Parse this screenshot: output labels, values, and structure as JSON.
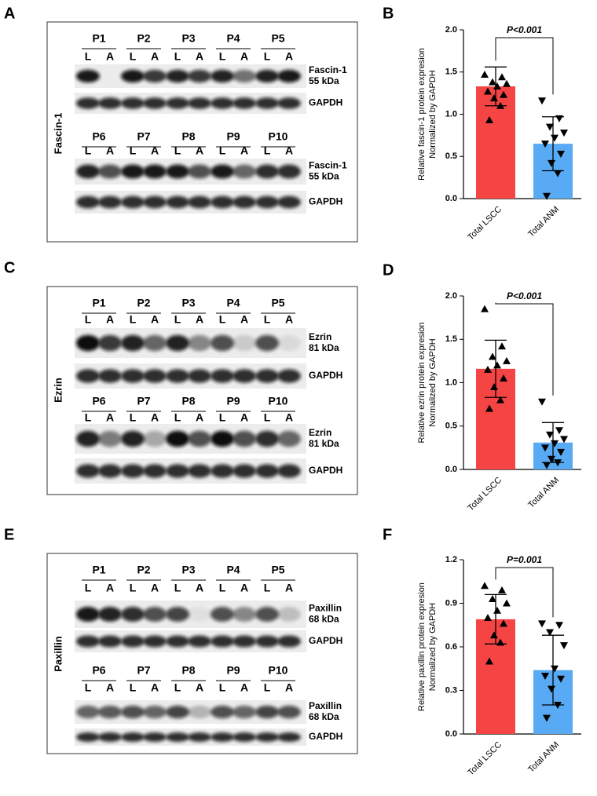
{
  "blots": [
    {
      "panel": "A",
      "side_label": "Fascin-1",
      "lanes": [
        "L",
        "A"
      ],
      "groups": [
        {
          "patients": [
            "P1",
            "P2",
            "P3",
            "P4",
            "P5"
          ],
          "target": [
            "Fascin-1",
            "55 kDa"
          ],
          "control": "GAPDH"
        },
        {
          "patients": [
            "P6",
            "P7",
            "P8",
            "P9",
            "P10"
          ],
          "target": [
            "Fascin-1",
            "55 kDa"
          ],
          "control": "GAPDH"
        }
      ]
    },
    {
      "panel": "C",
      "side_label": "Ezrin",
      "lanes": [
        "L",
        "A"
      ],
      "groups": [
        {
          "patients": [
            "P1",
            "P2",
            "P3",
            "P4",
            "P5"
          ],
          "target": [
            "Ezrin",
            "81 kDa"
          ],
          "control": "GAPDH"
        },
        {
          "patients": [
            "P6",
            "P7",
            "P8",
            "P9",
            "P10"
          ],
          "target": [
            "Ezrin",
            "81 kDa"
          ],
          "control": "GAPDH"
        }
      ]
    },
    {
      "panel": "E",
      "side_label": "Paxillin",
      "lanes": [
        "L",
        "A"
      ],
      "groups": [
        {
          "patients": [
            "P1",
            "P2",
            "P3",
            "P4",
            "P5"
          ],
          "target": [
            "Paxillin",
            "68 kDa"
          ],
          "control": "GAPDH"
        },
        {
          "patients": [
            "P6",
            "P7",
            "P8",
            "P9",
            "P10"
          ],
          "target": [
            "Paxillin",
            "68 kDa"
          ],
          "control": "GAPDH"
        }
      ]
    }
  ],
  "chart_data": [
    {
      "type": "bar",
      "panel": "B",
      "ylabel": [
        "Relative fascin-1 protein expresion",
        "Normalized by GAPDH"
      ],
      "categories": [
        "Total LSCC",
        "Total ANM"
      ],
      "values": [
        1.33,
        0.65
      ],
      "errors": [
        0.23,
        0.32
      ],
      "points": [
        [
          1.47,
          1.44,
          1.38,
          1.36,
          1.33,
          1.27,
          1.23,
          1.19,
          1.1,
          0.93
        ],
        [
          1.16,
          0.95,
          0.85,
          0.78,
          0.72,
          0.65,
          0.53,
          0.42,
          0.3,
          0.03
        ]
      ],
      "colors": [
        "#f44444",
        "#58aaf4"
      ],
      "annotation": "P<0.001",
      "ylim": [
        0,
        2
      ],
      "yticks": [
        {
          "value": 0,
          "label": "0.0"
        },
        {
          "value": 0.5,
          "label": "0.5"
        },
        {
          "value": 1,
          "label": "1.0"
        },
        {
          "value": 1.5,
          "label": "1.5"
        },
        {
          "value": 2,
          "label": "2.0"
        }
      ]
    },
    {
      "type": "bar",
      "panel": "D",
      "ylabel": [
        "Relative ezrin protein  expresion",
        "Normalized by GAPDH"
      ],
      "categories": [
        "Total LSCC",
        "Total ANM"
      ],
      "values": [
        1.16,
        0.31
      ],
      "errors": [
        0.33,
        0.23
      ],
      "points": [
        [
          1.85,
          1.42,
          1.3,
          1.25,
          1.2,
          1.15,
          1.05,
          0.95,
          0.8,
          0.7
        ],
        [
          0.78,
          0.45,
          0.4,
          0.35,
          0.3,
          0.25,
          0.2,
          0.12,
          0.08,
          0.05
        ]
      ],
      "colors": [
        "#f44444",
        "#58aaf4"
      ],
      "annotation": "P<0.001",
      "ylim": [
        0,
        2
      ],
      "yticks": [
        {
          "value": 0,
          "label": "0.0"
        },
        {
          "value": 0.5,
          "label": "0.5"
        },
        {
          "value": 1,
          "label": "1.0"
        },
        {
          "value": 1.5,
          "label": "1.5"
        },
        {
          "value": 2,
          "label": "2.0"
        }
      ]
    },
    {
      "type": "bar",
      "panel": "F",
      "ylabel": [
        "Relative paxillin protein expresion",
        "Normalized by GAPDH"
      ],
      "categories": [
        "Total LSCC",
        "Total ANM"
      ],
      "values": [
        0.79,
        0.44
      ],
      "errors": [
        0.17,
        0.24
      ],
      "points": [
        [
          1.02,
          0.99,
          0.93,
          0.9,
          0.85,
          0.8,
          0.76,
          0.68,
          0.63,
          0.5
        ],
        [
          0.76,
          0.75,
          0.7,
          0.61,
          0.45,
          0.4,
          0.38,
          0.31,
          0.2,
          0.11
        ]
      ],
      "colors": [
        "#f44444",
        "#58aaf4"
      ],
      "annotation": "P=0.001",
      "ylim": [
        0,
        1.2
      ],
      "yticks": [
        {
          "value": 0,
          "label": "0.0"
        },
        {
          "value": 0.3,
          "label": "0.3"
        },
        {
          "value": 0.6,
          "label": "0.6"
        },
        {
          "value": 0.9,
          "label": "0.9"
        },
        {
          "value": 1.2,
          "label": "1.2"
        }
      ]
    }
  ]
}
